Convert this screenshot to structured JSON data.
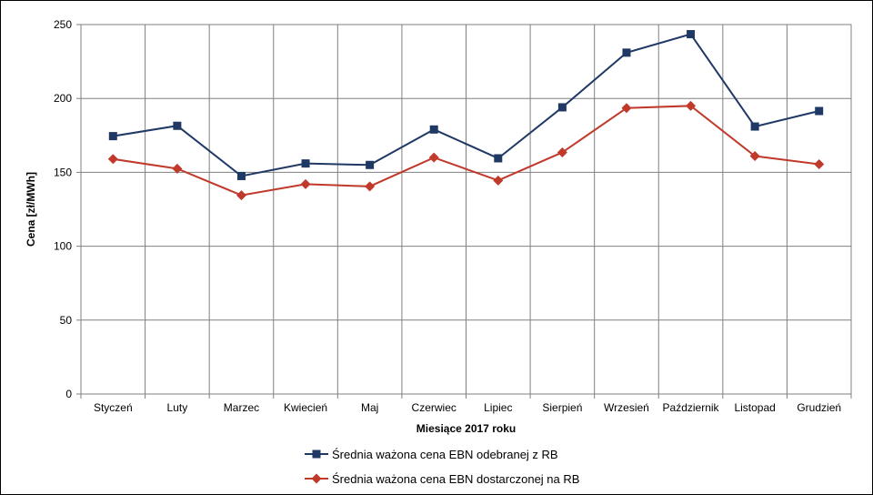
{
  "chart_data": {
    "type": "line",
    "categories": [
      "Styczeń",
      "Luty",
      "Marzec",
      "Kwiecień",
      "Maj",
      "Czerwiec",
      "Lipiec",
      "Sierpień",
      "Wrzesień",
      "Październik",
      "Listopad",
      "Grudzień"
    ],
    "series": [
      {
        "name": "Średnia ważona cena EBN odebranej z RB",
        "color": "#1f3864",
        "marker": "square",
        "values": [
          174.5,
          181.5,
          147.5,
          156,
          155,
          179,
          159.5,
          194,
          231,
          243.5,
          181,
          191.5
        ]
      },
      {
        "name": "Średnia ważona cena EBN dostarczonej na RB",
        "color": "#c0392b",
        "marker": "diamond",
        "values": [
          159,
          152.5,
          134.5,
          142,
          140.5,
          160,
          144.5,
          163.5,
          193.5,
          195,
          161,
          155.5
        ]
      }
    ],
    "xlabel": "Miesiące 2017  roku",
    "ylabel": "Cena [zł/MWh]",
    "ylim": [
      0,
      250
    ],
    "yticks": [
      0,
      50,
      100,
      150,
      200,
      250
    ],
    "grid": true,
    "legend_position": "bottom"
  }
}
